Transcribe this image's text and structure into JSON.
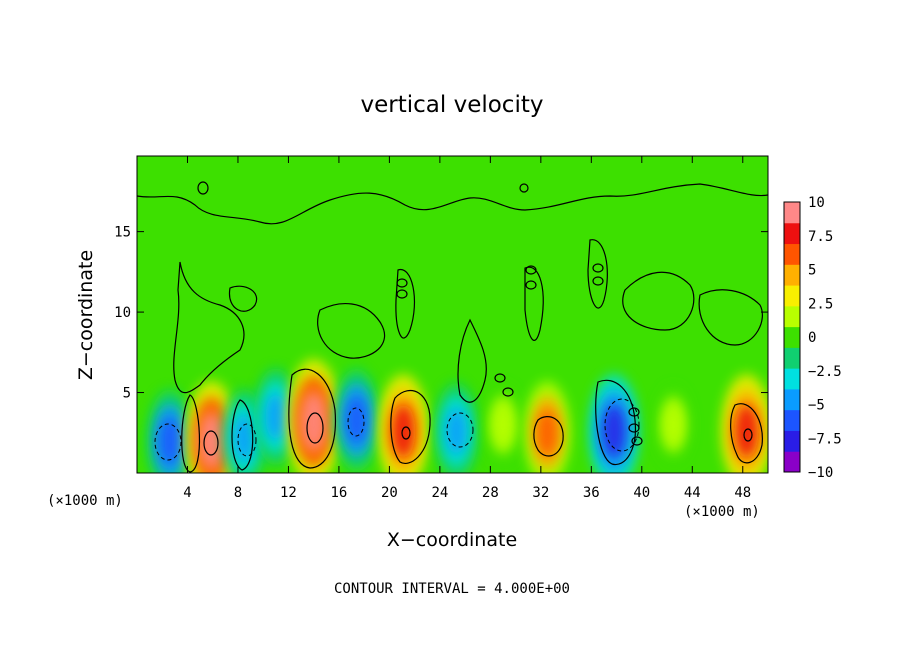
{
  "chart_data": {
    "type": "heatmap",
    "title": "vertical velocity",
    "xlabel": "X−coordinate",
    "ylabel": "Z−coordinate",
    "x_unit_left": "(×1000 m)",
    "x_unit_right": "(×1000 m)",
    "xlim": [
      0,
      50
    ],
    "ylim": [
      0,
      19.7
    ],
    "x_ticks": [
      4,
      8,
      12,
      16,
      20,
      24,
      28,
      32,
      36,
      40,
      44,
      48
    ],
    "x_tick_labels": [
      "4",
      "8",
      "12",
      "16",
      "20",
      "24",
      "28",
      "32",
      "36",
      "40",
      "44",
      "48"
    ],
    "y_ticks": [
      5,
      10,
      15
    ],
    "y_tick_labels": [
      "5",
      "10",
      "15"
    ],
    "contour_interval_text": "CONTOUR INTERVAL = 4.000E+00",
    "colorbar": {
      "range": [
        -10,
        10
      ],
      "tick_values": [
        10,
        7.5,
        5,
        2.5,
        0,
        -2.5,
        -5,
        -7.5,
        -10
      ],
      "tick_labels": [
        "10",
        "7.5",
        "5",
        "2.5",
        "0",
        "−2.5",
        "−5",
        "−7.5",
        "−10"
      ],
      "colors": [
        "#8a00c8",
        "#2a1de6",
        "#1c55ff",
        "#0a9cff",
        "#00e0e0",
        "#10d070",
        "#3de000",
        "#b8ff00",
        "#f8ef00",
        "#ffb000",
        "#ff5500",
        "#ee1010",
        "#ff8888"
      ]
    },
    "features": [
      {
        "x": 2.6,
        "z": 2.0,
        "value": -6
      },
      {
        "x": 5.9,
        "z": 2.0,
        "value": 9
      },
      {
        "x": 8.5,
        "z": 2.2,
        "value": -5
      },
      {
        "x": 11.0,
        "z": 3.5,
        "value": -5
      },
      {
        "x": 14.0,
        "z": 3.2,
        "value": 10
      },
      {
        "x": 17.4,
        "z": 3.3,
        "value": -6
      },
      {
        "x": 21.1,
        "z": 2.6,
        "value": 8
      },
      {
        "x": 25.3,
        "z": 2.6,
        "value": -5
      },
      {
        "x": 29.0,
        "z": 3.0,
        "value": 2
      },
      {
        "x": 32.5,
        "z": 2.5,
        "value": 6
      },
      {
        "x": 37.8,
        "z": 2.6,
        "value": -8
      },
      {
        "x": 42.5,
        "z": 3.0,
        "value": 1.5
      },
      {
        "x": 48.3,
        "z": 2.6,
        "value": 8
      }
    ]
  }
}
